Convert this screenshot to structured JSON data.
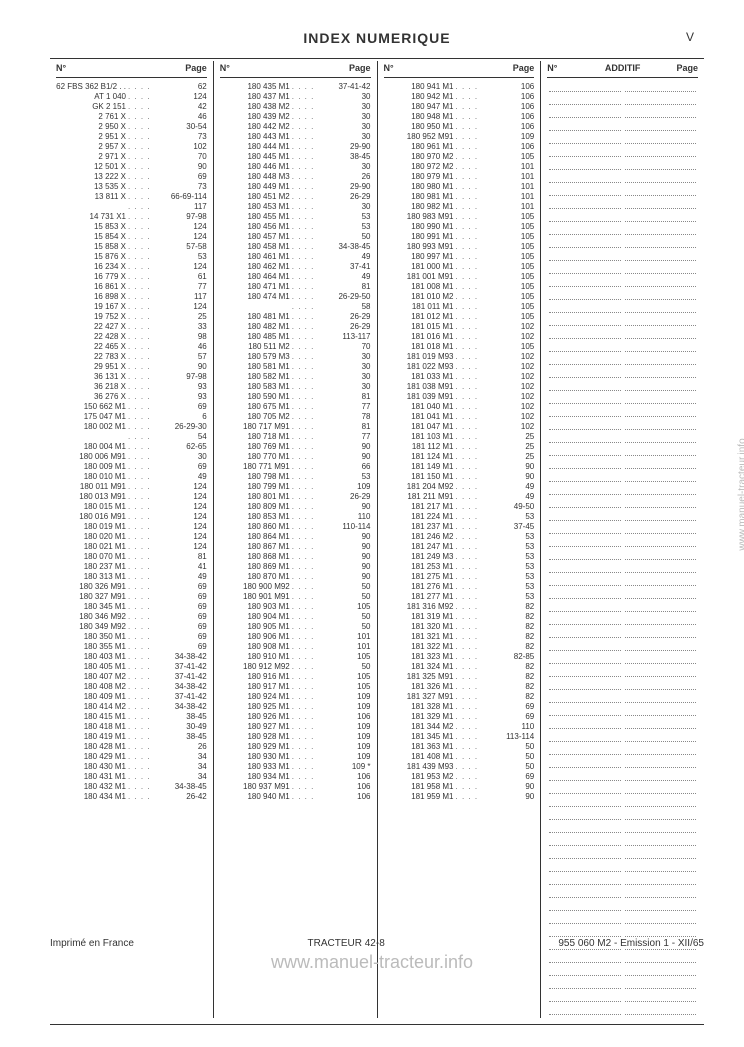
{
  "header": {
    "title": "INDEX NUMERIQUE",
    "page_roman": "V",
    "col_no": "N°",
    "col_page": "Page",
    "additif": "ADDITIF"
  },
  "footer": {
    "left": "Imprimé en France",
    "center": "TRACTEUR 42-8",
    "right": "955 060 M2 - Emission 1 - XII/65"
  },
  "watermark": "www.manuel-tracteur.info",
  "col1": [
    [
      "62 FBS 362 B1/2 . .",
      "62"
    ],
    [
      "AT 1 040",
      "124"
    ],
    [
      "GK 2 151",
      "42"
    ],
    [
      "2 761 X",
      "46"
    ],
    [
      "2 950 X",
      "30-54"
    ],
    [
      "2 951 X",
      "73"
    ],
    [
      "2 957 X",
      "102"
    ],
    [
      "2 971 X",
      "70"
    ],
    [
      "12 501 X",
      "90"
    ],
    [
      "13 222 X",
      "69"
    ],
    [
      "13 535 X",
      "73"
    ],
    [
      "13 811 X",
      "66-69-114"
    ],
    [
      "",
      "117"
    ],
    [
      "14 731 X1",
      "97-98"
    ],
    [
      "15 853 X",
      "124"
    ],
    [
      "15 854 X",
      "124"
    ],
    [
      "15 858 X",
      "57-58"
    ],
    [
      "15 876 X",
      "53"
    ],
    [
      "16 234 X",
      "124"
    ],
    [
      "16 779 X",
      "61"
    ],
    [
      "16 861 X",
      "77"
    ],
    [
      "16 898 X",
      "117"
    ],
    [
      "19 167 X",
      "124"
    ],
    [
      "19 752 X",
      "25"
    ],
    [
      "22 427 X",
      "33"
    ],
    [
      "22 428 X",
      "98"
    ],
    [
      "22 465 X",
      "46"
    ],
    [
      "22 783 X",
      "57"
    ],
    [
      "29 951 X",
      "90"
    ],
    [
      "36 131 X",
      "97-98"
    ],
    [
      "36 218 X",
      "93"
    ],
    [
      "36 276 X",
      "93"
    ],
    [
      "150 662 M1",
      "69"
    ],
    [
      "175 047 M1",
      "6"
    ],
    [
      "180 002 M1",
      "26-29-30"
    ],
    [
      "",
      "54"
    ],
    [
      "180 004 M1",
      "62-65"
    ],
    [
      "180 006 M91",
      "30"
    ],
    [
      "180 009 M1",
      "69"
    ],
    [
      "180 010 M1",
      "49"
    ],
    [
      "180 011 M91",
      "124"
    ],
    [
      "180 013 M91",
      "124"
    ],
    [
      "180 015 M1",
      "124"
    ],
    [
      "180 016 M91",
      "124"
    ],
    [
      "180 019 M1",
      "124"
    ],
    [
      "180 020 M1",
      "124"
    ],
    [
      "180 021 M1",
      "124"
    ],
    [
      "180 070 M1",
      "81"
    ],
    [
      "180 237 M1",
      "41"
    ],
    [
      "180 313 M1",
      "49"
    ],
    [
      "180 326 M91",
      "69"
    ],
    [
      "180 327 M91",
      "69"
    ],
    [
      "180 345 M1",
      "69"
    ],
    [
      "180 346 M92",
      "69"
    ],
    [
      "180 349 M92",
      "69"
    ],
    [
      "180 350 M1",
      "69"
    ],
    [
      "180 355 M1",
      "69"
    ],
    [
      "180 403 M1",
      "34-38-42"
    ],
    [
      "180 405 M1",
      "37-41-42"
    ],
    [
      "180 407 M2",
      "37-41-42"
    ],
    [
      "180 408 M2",
      "34-38-42"
    ],
    [
      "180 409 M1",
      "37-41-42"
    ],
    [
      "180 414 M2",
      "34-38-42"
    ],
    [
      "180 415 M1",
      "38-45"
    ],
    [
      "180 418 M1",
      "30-49"
    ],
    [
      "180 419 M1",
      "38-45"
    ],
    [
      "180 428 M1",
      "26"
    ],
    [
      "180 429 M1",
      "34"
    ],
    [
      "180 430 M1",
      "34"
    ],
    [
      "180 431 M1",
      "34"
    ],
    [
      "180 432 M1",
      "34-38-45"
    ],
    [
      "180 434 M1",
      "26-42"
    ]
  ],
  "col2": [
    [
      "180 435 M1",
      "37-41-42"
    ],
    [
      "180 437 M1",
      "30"
    ],
    [
      "180 438 M2",
      "30"
    ],
    [
      "180 439 M2",
      "30"
    ],
    [
      "180 442 M2",
      "30"
    ],
    [
      "180 443 M1",
      "30"
    ],
    [
      "180 444 M1",
      "29-90"
    ],
    [
      "180 445 M1",
      "38-45"
    ],
    [
      "180 446 M1",
      "30"
    ],
    [
      "180 448 M3",
      "26"
    ],
    [
      "180 449 M1",
      "29-90"
    ],
    [
      "180 451 M2",
      "26-29"
    ],
    [
      "180 453 M1",
      "30"
    ],
    [
      "180 455 M1",
      "53"
    ],
    [
      "180 456 M1",
      "53"
    ],
    [
      "180 457 M1",
      "50"
    ],
    [
      "180 458 M1",
      "34-38-45"
    ],
    [
      "180 461 M1",
      "49"
    ],
    [
      "180 462 M1",
      "37-41"
    ],
    [
      "180 464 M1",
      "49"
    ],
    [
      "180 471 M1",
      "81"
    ],
    [
      "180 474 M1",
      "26-29-50"
    ],
    [
      "",
      "58"
    ],
    [
      "180 481 M1",
      "26-29"
    ],
    [
      "180 482 M1",
      "26-29"
    ],
    [
      "180 485 M1",
      "113-117"
    ],
    [
      "180 511 M2",
      "70"
    ],
    [
      "180 579 M3",
      "30"
    ],
    [
      "180 581 M1",
      "30"
    ],
    [
      "180 582 M1",
      "30"
    ],
    [
      "180 583 M1",
      "30"
    ],
    [
      "180 590 M1",
      "81"
    ],
    [
      "180 675 M1",
      "77"
    ],
    [
      "180 705 M2",
      "78"
    ],
    [
      "180 717 M91",
      "81"
    ],
    [
      "180 718 M1",
      "77"
    ],
    [
      "180 769 M1",
      "90"
    ],
    [
      "180 770 M1",
      "90"
    ],
    [
      "180 771 M91",
      "66"
    ],
    [
      "180 798 M1",
      "53"
    ],
    [
      "180 799 M1",
      "109"
    ],
    [
      "180 801 M1",
      "26-29"
    ],
    [
      "180 809 M1",
      "90"
    ],
    [
      "180 853 M1",
      "110"
    ],
    [
      "180 860 M1",
      "110-114"
    ],
    [
      "180 864 M1",
      "90"
    ],
    [
      "180 867 M1",
      "90"
    ],
    [
      "180 868 M1",
      "90"
    ],
    [
      "180 869 M1",
      "90"
    ],
    [
      "180 870 M1",
      "90"
    ],
    [
      "180 900 M92",
      "50"
    ],
    [
      "180 901 M91",
      "50"
    ],
    [
      "180 903 M1",
      "105"
    ],
    [
      "180 904 M1",
      "50"
    ],
    [
      "180 905 M1",
      "50"
    ],
    [
      "180 906 M1",
      "101"
    ],
    [
      "180 908 M1",
      "101"
    ],
    [
      "180 910 M1",
      "105"
    ],
    [
      "180 912 M92",
      "50"
    ],
    [
      "180 916 M1",
      "105"
    ],
    [
      "180 917 M1",
      "105"
    ],
    [
      "180 924 M1",
      "109"
    ],
    [
      "180 925 M1",
      "109"
    ],
    [
      "180 926 M1",
      "106"
    ],
    [
      "180 927 M1",
      "109"
    ],
    [
      "180 928 M1",
      "109"
    ],
    [
      "180 929 M1",
      "109"
    ],
    [
      "180 930 M1",
      "109"
    ],
    [
      "180 933 M1",
      "109 *"
    ],
    [
      "180 934 M1",
      "106"
    ],
    [
      "180 937 M91",
      "106"
    ],
    [
      "180 940 M1",
      "106"
    ]
  ],
  "col3": [
    [
      "180 941 M1",
      "106"
    ],
    [
      "180 942 M1",
      "106"
    ],
    [
      "180 947 M1",
      "106"
    ],
    [
      "180 948 M1",
      "106"
    ],
    [
      "180 950 M1",
      "106"
    ],
    [
      "180 952 M91",
      "109"
    ],
    [
      "180 961 M1",
      "106"
    ],
    [
      "180 970 M2",
      "105"
    ],
    [
      "180 972 M2",
      "101"
    ],
    [
      "180 979 M1",
      "101"
    ],
    [
      "180 980 M1",
      "101"
    ],
    [
      "180 981 M1",
      "101"
    ],
    [
      "180 982 M1",
      "101"
    ],
    [
      "180 983 M91",
      "105"
    ],
    [
      "180 990 M1",
      "105"
    ],
    [
      "180 991 M1",
      "105"
    ],
    [
      "180 993 M91",
      "105"
    ],
    [
      "180 997 M1",
      "105"
    ],
    [
      "181 000 M1",
      "105"
    ],
    [
      "181 001 M91",
      "105"
    ],
    [
      "181 008 M1",
      "105"
    ],
    [
      "181 010 M2",
      "105"
    ],
    [
      "181 011 M1",
      "105"
    ],
    [
      "181 012 M1",
      "105"
    ],
    [
      "181 015 M1",
      "102"
    ],
    [
      "181 016 M1",
      "102"
    ],
    [
      "181 018 M1",
      "105"
    ],
    [
      "181 019 M93",
      "102"
    ],
    [
      "181 022 M93",
      "102"
    ],
    [
      "181 033 M1",
      "102"
    ],
    [
      "181 038 M91",
      "102"
    ],
    [
      "181 039 M91",
      "102"
    ],
    [
      "181 040 M1",
      "102"
    ],
    [
      "181 041 M1",
      "102"
    ],
    [
      "181 047 M1",
      "102"
    ],
    [
      "181 103 M1",
      "25"
    ],
    [
      "181 112 M1",
      "25"
    ],
    [
      "181 124 M1",
      "25"
    ],
    [
      "181 149 M1",
      "90"
    ],
    [
      "181 150 M1",
      "90"
    ],
    [
      "181 204 M92",
      "49"
    ],
    [
      "181 211 M91",
      "49"
    ],
    [
      "181 217 M1",
      "49-50"
    ],
    [
      "181 224 M1",
      "53"
    ],
    [
      "181 237 M1",
      "37-45"
    ],
    [
      "181 246 M2",
      "53"
    ],
    [
      "181 247 M1",
      "53"
    ],
    [
      "181 249 M3",
      "53"
    ],
    [
      "181 253 M1",
      "53"
    ],
    [
      "181 275 M1",
      "53"
    ],
    [
      "181 276 M1",
      "53"
    ],
    [
      "181 277 M1",
      "53"
    ],
    [
      "181 316 M92",
      "82"
    ],
    [
      "181 319 M1",
      "82"
    ],
    [
      "181 320 M1",
      "82"
    ],
    [
      "181 321 M1",
      "82"
    ],
    [
      "181 322 M1",
      "82"
    ],
    [
      "181 323 M1",
      "82-85"
    ],
    [
      "181 324 M1",
      "82"
    ],
    [
      "181 325 M91",
      "82"
    ],
    [
      "181 326 M1",
      "82"
    ],
    [
      "181 327 M91",
      "82"
    ],
    [
      "181 328 M1",
      "69"
    ],
    [
      "181 329 M1",
      "69"
    ],
    [
      "181 344 M2",
      "110"
    ],
    [
      "181 345 M1",
      "113-114"
    ],
    [
      "181 363 M1",
      "50"
    ],
    [
      "181 408 M1",
      "50"
    ],
    [
      "181 439 M93",
      "50"
    ],
    [
      "181 953 M2",
      "69"
    ],
    [
      "181 958 M1",
      "90"
    ],
    [
      "181 959 M1",
      "90"
    ]
  ],
  "blank_rows": 72
}
